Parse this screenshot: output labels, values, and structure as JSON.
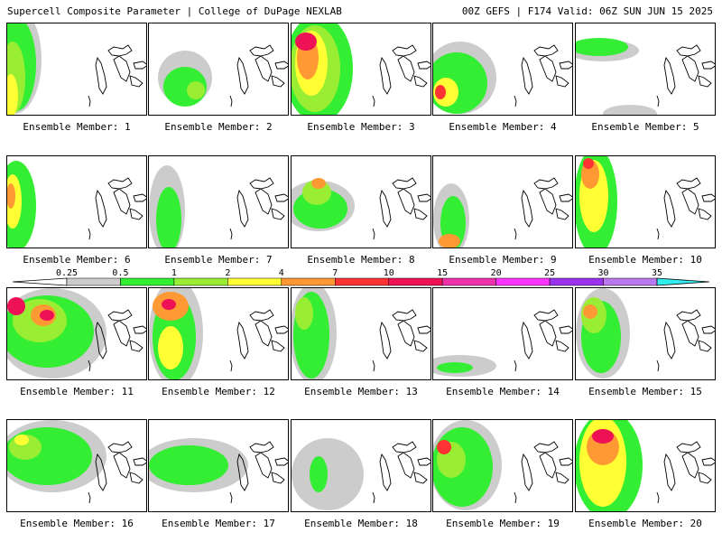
{
  "header": {
    "left": "Supercell Composite Parameter | College of DuPage NEXLAB",
    "right": "00Z GEFS | F174 Valid: 06Z SUN JUN 15 2025"
  },
  "colorbar": {
    "ticks": [
      "0.25",
      "0.5",
      "1",
      "2",
      "4",
      "7",
      "10",
      "15",
      "20",
      "25",
      "30",
      "35"
    ],
    "colors": [
      "#cccccc",
      "#33ee33",
      "#99ee33",
      "#ffff33",
      "#ff9933",
      "#ff3333",
      "#ee1155",
      "#ee33aa",
      "#ff33ff",
      "#9933ee",
      "#bb77ee",
      "#33eeee"
    ]
  },
  "members": [
    {
      "label": "Ensemble Member: 1"
    },
    {
      "label": "Ensemble Member: 2"
    },
    {
      "label": "Ensemble Member: 3"
    },
    {
      "label": "Ensemble Member: 4"
    },
    {
      "label": "Ensemble Member: 5"
    },
    {
      "label": "Ensemble Member: 6"
    },
    {
      "label": "Ensemble Member: 7"
    },
    {
      "label": "Ensemble Member: 8"
    },
    {
      "label": "Ensemble Member: 9"
    },
    {
      "label": "Ensemble Member: 10"
    },
    {
      "label": "Ensemble Member: 11"
    },
    {
      "label": "Ensemble Member: 12"
    },
    {
      "label": "Ensemble Member: 13"
    },
    {
      "label": "Ensemble Member: 14"
    },
    {
      "label": "Ensemble Member: 15"
    },
    {
      "label": "Ensemble Member: 16"
    },
    {
      "label": "Ensemble Member: 17"
    },
    {
      "label": "Ensemble Member: 18"
    },
    {
      "label": "Ensemble Member: 19"
    },
    {
      "label": "Ensemble Member: 20"
    }
  ]
}
